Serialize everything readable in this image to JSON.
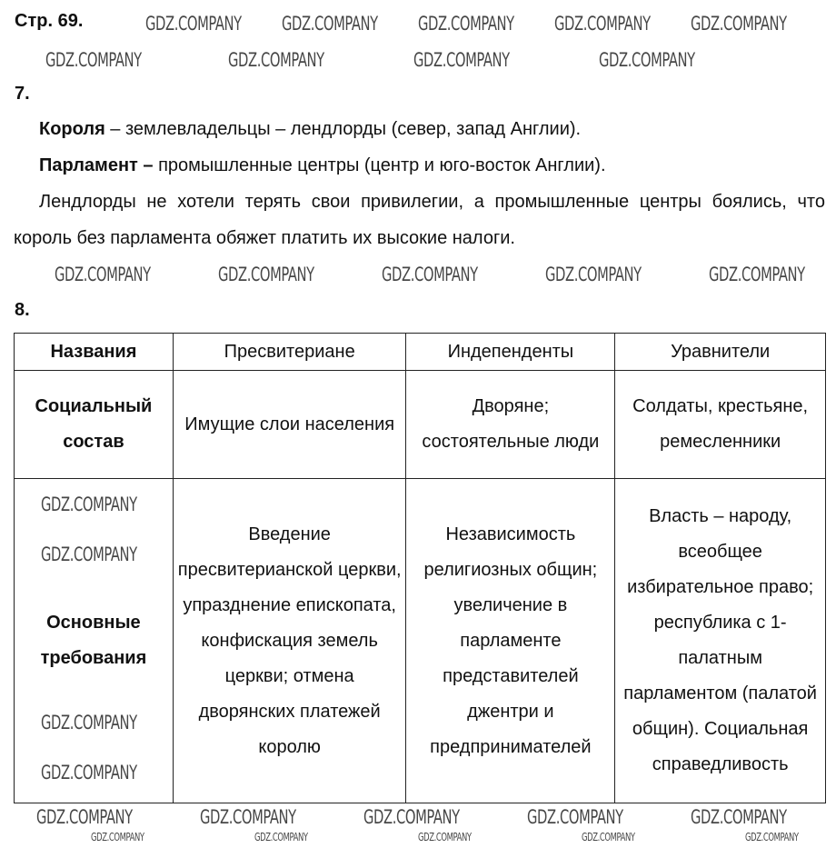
{
  "header": "Стр. 69.",
  "watermark": "GDZ.COMPANY",
  "task7": {
    "number": "7.",
    "line1_bold": "Короля",
    "line1_rest": " – землевладельцы – лендлорды (север, запад Англии).",
    "line2_bold": "Парламент –",
    "line2_rest": " промышленные центры (центр и юго-восток Англии).",
    "line3": "Лендлорды не хотели терять свои привилегии, а промышленные центры боялись, что король без парламента обяжет платить их высокие налоги."
  },
  "task8": {
    "number": "8.",
    "headers": [
      "Названия",
      "Пресвитериане",
      "Индепенденты",
      "Уравнители"
    ],
    "rows": [
      {
        "label": "Социальный состав",
        "cells": [
          "Имущие слои населения",
          "Дворяне; состоятельные люди",
          "Солдаты, крестьяне, ремесленники"
        ]
      },
      {
        "label": "Основные требования",
        "cells": [
          "Введение пресвитерианской церкви, упразднение епископата, конфискация земель церкви; отмена дворянских платежей королю",
          "Независимость религиозных общин; увеличение в парламенте представителей джентри и предпринимателей",
          "Власть – народу, всеобщее избирательное право; республика с 1-палатным парламентом (палатой общин). Социальная справедливость"
        ]
      }
    ]
  }
}
